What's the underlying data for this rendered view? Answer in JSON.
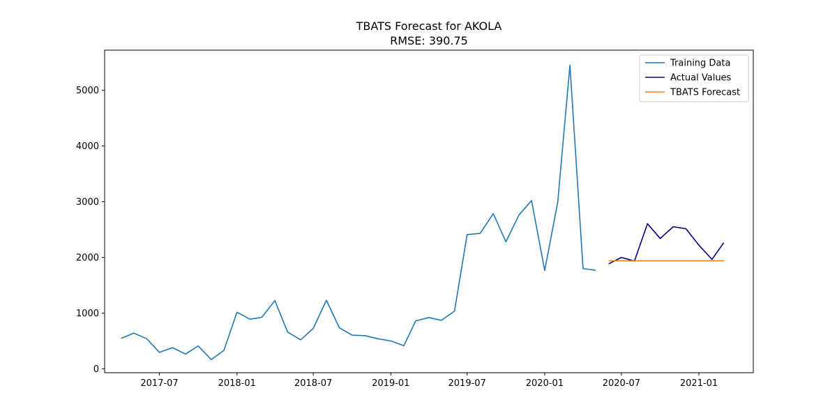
{
  "chart_data": {
    "type": "line",
    "title": "TBATS Forecast for AKOLA",
    "subtitle": "RMSE: 390.75",
    "xlabel": "",
    "ylabel": "",
    "ylim": [
      -70,
      5720
    ],
    "xlim": [
      "2017-02-21",
      "2021-05-10"
    ],
    "yticks": [
      0,
      1000,
      2000,
      3000,
      4000,
      5000
    ],
    "xticks": [
      "2017-07",
      "2018-01",
      "2018-07",
      "2019-01",
      "2019-07",
      "2020-01",
      "2020-07",
      "2021-01"
    ],
    "grid": false,
    "legend_position": "top-right",
    "series": [
      {
        "name": "Training Data",
        "color": "#1f77b4",
        "x": [
          "2017-04",
          "2017-05",
          "2017-06",
          "2017-07",
          "2017-08",
          "2017-09",
          "2017-10",
          "2017-11",
          "2017-12",
          "2018-01",
          "2018-02",
          "2018-03",
          "2018-04",
          "2018-05",
          "2018-06",
          "2018-07",
          "2018-08",
          "2018-09",
          "2018-10",
          "2018-11",
          "2018-12",
          "2019-01",
          "2019-02",
          "2019-03",
          "2019-04",
          "2019-05",
          "2019-06",
          "2019-07",
          "2019-08",
          "2019-09",
          "2019-10",
          "2019-11",
          "2019-12",
          "2020-01",
          "2020-02",
          "2020-03",
          "2020-04",
          "2020-05"
        ],
        "values": [
          545,
          640,
          540,
          295,
          380,
          265,
          410,
          165,
          330,
          1015,
          890,
          925,
          1225,
          660,
          520,
          725,
          1230,
          735,
          605,
          595,
          540,
          500,
          415,
          860,
          920,
          870,
          1035,
          2410,
          2430,
          2785,
          2280,
          2760,
          3020,
          1765,
          2990,
          5450,
          1800,
          1770
        ]
      },
      {
        "name": "Actual Values",
        "color": "#000080",
        "x": [
          "2020-06",
          "2020-07",
          "2020-08",
          "2020-09",
          "2020-10",
          "2020-11",
          "2020-12",
          "2021-01",
          "2021-02",
          "2021-03"
        ],
        "values": [
          1885,
          2000,
          1935,
          2605,
          2340,
          2550,
          2515,
          2220,
          1965,
          2265
        ]
      },
      {
        "name": "TBATS Forecast",
        "color": "#ff7f0e",
        "x": [
          "2020-06",
          "2020-07",
          "2020-08",
          "2020-09",
          "2020-10",
          "2020-11",
          "2020-12",
          "2021-01",
          "2021-02",
          "2021-03"
        ],
        "values": [
          1940,
          1940,
          1940,
          1940,
          1940,
          1940,
          1940,
          1940,
          1940,
          1940
        ]
      }
    ]
  }
}
